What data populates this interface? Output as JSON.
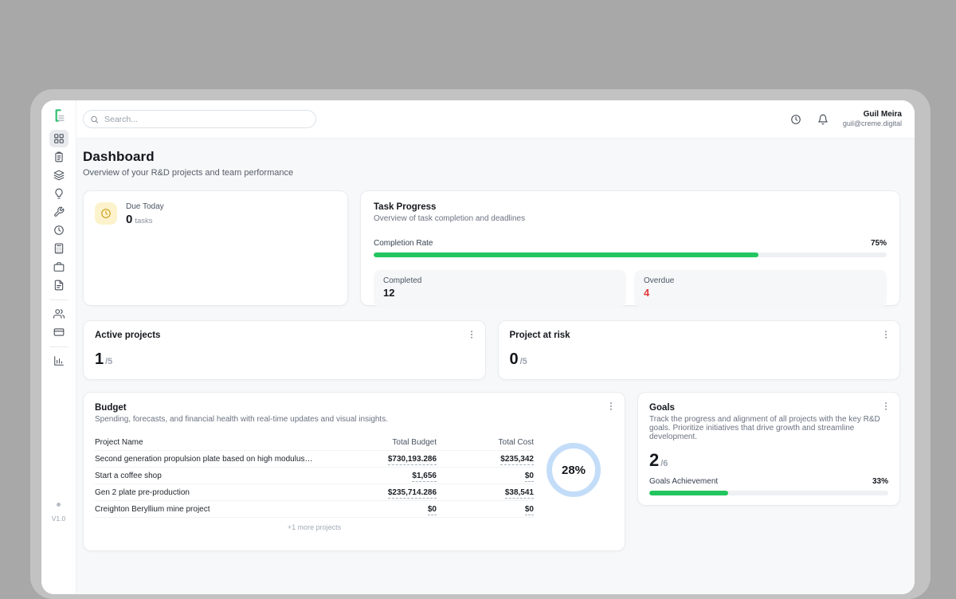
{
  "colors": {
    "accent_green": "#22c55e",
    "alert_red": "#e23b3c",
    "ring_blue": "#c3ddf9",
    "due_icon_amber": "#c9940a",
    "due_icon_bg": "#fcf3cd"
  },
  "sidebar": {
    "version": "V1.0",
    "items": [
      {
        "icon": "grid",
        "active": true
      },
      {
        "icon": "clipboard"
      },
      {
        "icon": "layers"
      },
      {
        "icon": "lightbulb"
      },
      {
        "icon": "wrench"
      },
      {
        "icon": "clock"
      },
      {
        "icon": "calculator"
      },
      {
        "icon": "briefcase"
      },
      {
        "icon": "file"
      },
      {
        "type": "divider"
      },
      {
        "icon": "users"
      },
      {
        "icon": "credit-card"
      },
      {
        "type": "divider"
      },
      {
        "icon": "bar-chart"
      }
    ]
  },
  "topbar": {
    "search_placeholder": "Search...",
    "action_icons": [
      "clock",
      "bell"
    ],
    "user_name": "Guil Meira",
    "user_email": "guil@creme.digital"
  },
  "page": {
    "title": "Dashboard",
    "subtitle": "Overview of your R&D projects and team performance"
  },
  "due_today": {
    "label": "Due Today",
    "value": "0",
    "unit": "tasks"
  },
  "task_progress": {
    "title": "Task Progress",
    "subtitle": "Overview of task completion and deadlines",
    "completion_rate_label": "Completion Rate",
    "completion_rate": "75%",
    "completion_pct": 75,
    "completed_label": "Completed",
    "completed_value": "12",
    "overdue_label": "Overdue",
    "overdue_value": "4"
  },
  "active_projects": {
    "title": "Active projects",
    "value": "1",
    "total": "/5"
  },
  "project_at_risk": {
    "title": "Project at risk",
    "value": "0",
    "total": "/5"
  },
  "budget": {
    "title": "Budget",
    "subtitle": "Spending, forecasts, and financial health with real-time updates and visual insights.",
    "columns": [
      "Project Name",
      "Total Budget",
      "Total Cost"
    ],
    "rows": [
      {
        "name": "Second generation propulsion plate based on high modulus fiber and...",
        "total_budget": "$730,193.286",
        "total_cost": "$235,342"
      },
      {
        "name": "Start a coffee shop",
        "total_budget": "$1,656",
        "total_cost": "$0"
      },
      {
        "name": "Gen 2 plate pre-production",
        "total_budget": "$235,714.286",
        "total_cost": "$38,541"
      },
      {
        "name": "Creighton Beryllium mine project",
        "total_budget": "$0",
        "total_cost": "$0"
      }
    ],
    "more_label": "+1 more projects",
    "ring_value": "28%",
    "ring_pct": 28
  },
  "goals": {
    "title": "Goals",
    "subtitle": "Track the progress and alignment of all projects with the key R&D goals. Prioritize initiatives that drive growth and streamline development.",
    "value": "2",
    "total": "/6",
    "achievement_label": "Goals Achievement",
    "achievement": "33%",
    "achievement_pct": 33
  }
}
